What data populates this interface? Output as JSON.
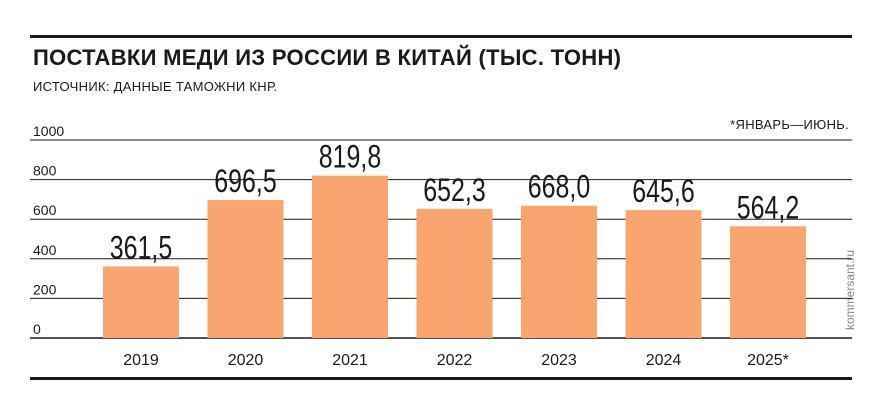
{
  "header": {
    "title": "ПОСТАВКИ МЕДИ ИЗ РОССИИ В КИТАЙ (ТЫС. ТОНН)",
    "subtitle": "ИСТОЧНИК: ДАННЫЕ ТАМОЖНИ КНР.",
    "note": "*ЯНВАРЬ—ИЮНЬ.",
    "watermark": "kommersant.ru"
  },
  "colors": {
    "bar": "#f9a56f",
    "text": "#1a1a1a",
    "gridline": "#1a1a1a"
  },
  "chart_data": {
    "type": "bar",
    "title": "ПОСТАВКИ МЕДИ ИЗ РОССИИ В КИТАЙ (ТЫС. ТОНН)",
    "xlabel": "",
    "ylabel": "",
    "categories": [
      "2019",
      "2020",
      "2021",
      "2022",
      "2023",
      "2024",
      "2025*"
    ],
    "values": [
      361.5,
      696.5,
      819.8,
      652.3,
      668.0,
      645.6,
      564.2
    ],
    "value_labels": [
      "361,5",
      "696,5",
      "819,8",
      "652,3",
      "668,0",
      "645,6",
      "564,2"
    ],
    "ylim": [
      0,
      1000
    ],
    "yticks": [
      0,
      200,
      400,
      600,
      800,
      1000
    ],
    "grid": true,
    "legend": "none"
  }
}
